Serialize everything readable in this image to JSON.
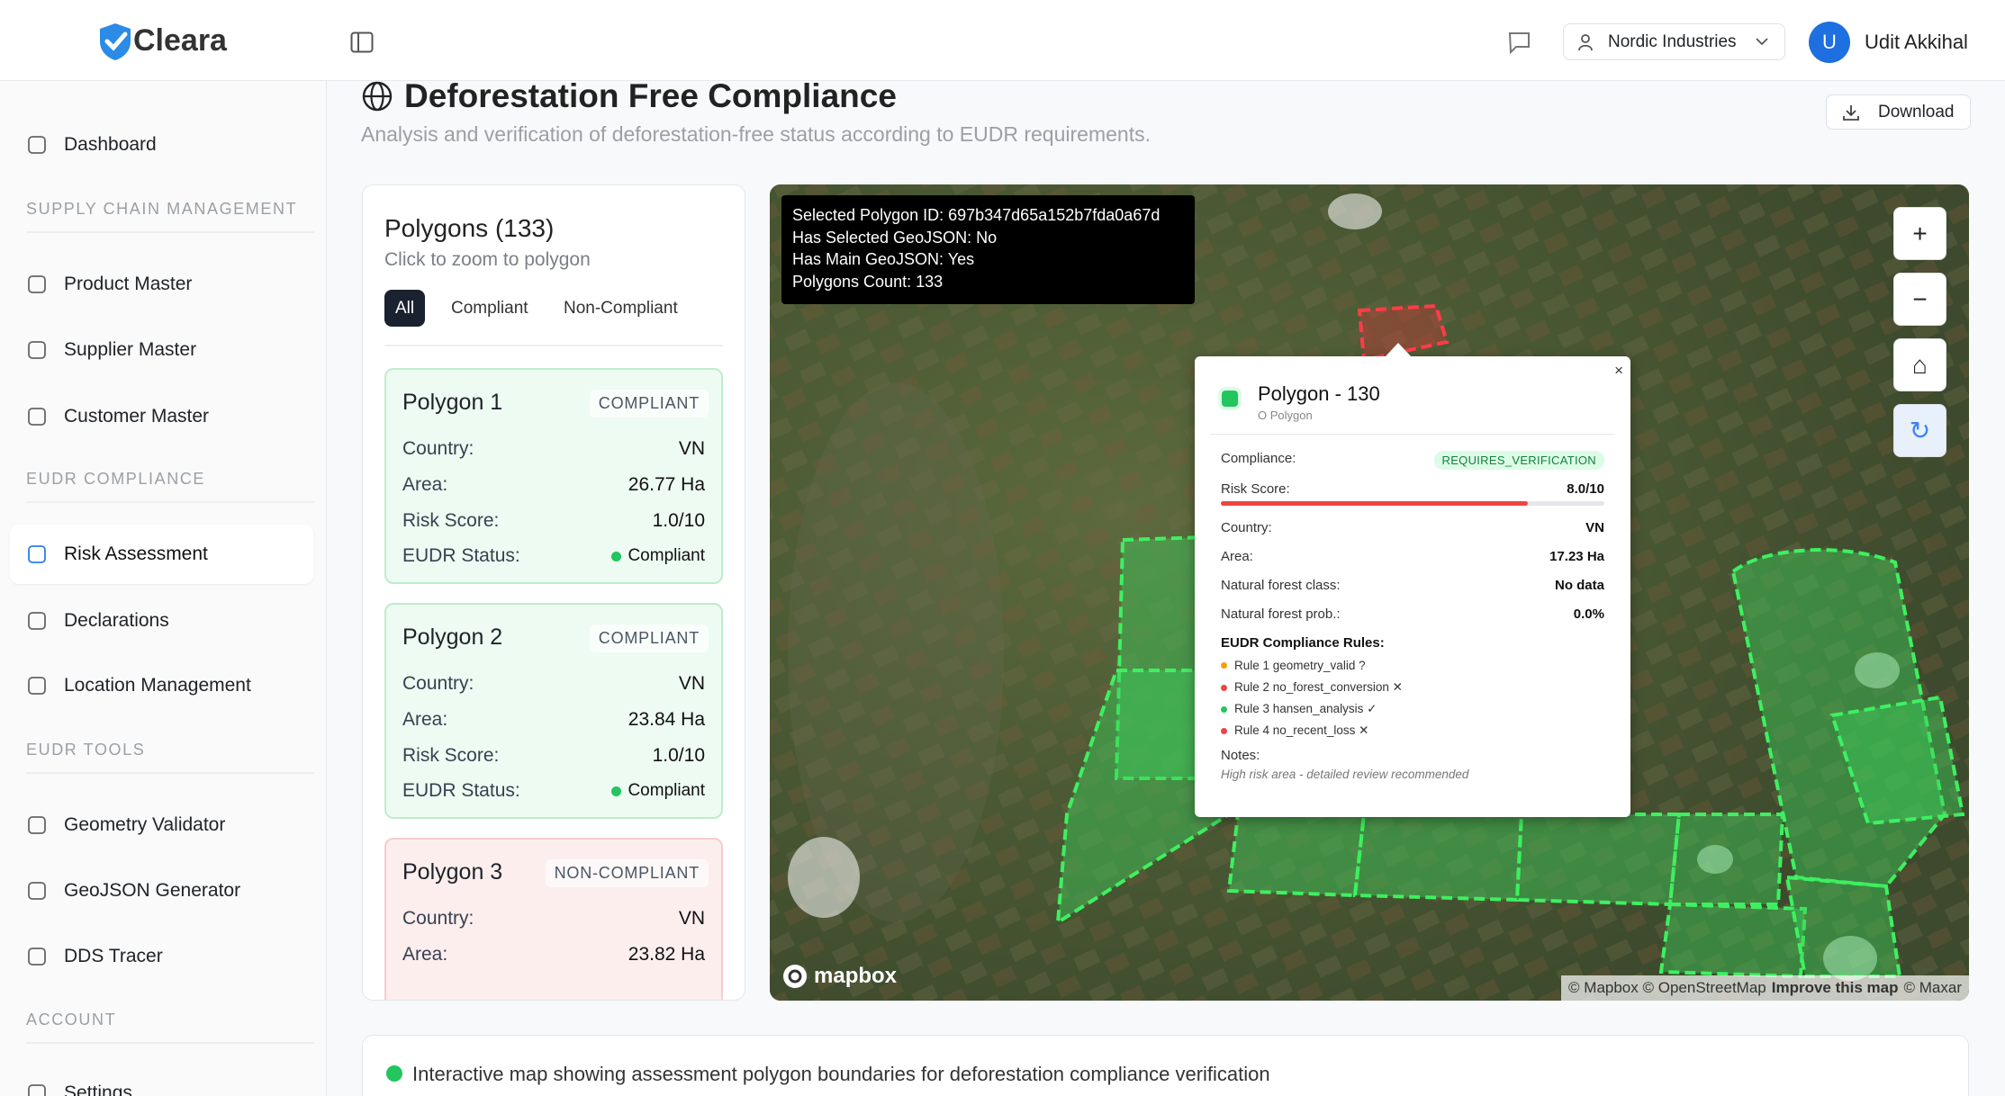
{
  "header": {
    "brand": "Cleara",
    "organization": "Nordic Industries",
    "avatar_initial": "U",
    "user_name": "Udit Akkihal"
  },
  "sidebar": {
    "items": [
      {
        "label": "Dashboard",
        "kind": "item"
      },
      {
        "label": "SUPPLY CHAIN MANAGEMENT",
        "kind": "section"
      },
      {
        "label": "Product Master",
        "kind": "item"
      },
      {
        "label": "Supplier Master",
        "kind": "item"
      },
      {
        "label": "Customer Master",
        "kind": "item"
      },
      {
        "label": "EUDR COMPLIANCE",
        "kind": "section"
      },
      {
        "label": "Risk Assessment",
        "kind": "item",
        "active": true
      },
      {
        "label": "Declarations",
        "kind": "item"
      },
      {
        "label": "Location Management",
        "kind": "item"
      },
      {
        "label": "EUDR TOOLS",
        "kind": "section"
      },
      {
        "label": "Geometry Validator",
        "kind": "item"
      },
      {
        "label": "GeoJSON Generator",
        "kind": "item"
      },
      {
        "label": "DDS Tracer",
        "kind": "item"
      },
      {
        "label": "ACCOUNT",
        "kind": "section"
      },
      {
        "label": "Settings",
        "kind": "item"
      }
    ]
  },
  "page": {
    "title": "Deforestation Free Compliance",
    "subtitle": "Analysis and verification of deforestation-free status according to EUDR requirements.",
    "download": "Download"
  },
  "polygons_panel": {
    "title": "Polygons (133)",
    "hint": "Click to zoom to polygon",
    "tabs": [
      "All",
      "Compliant",
      "Non-Compliant"
    ],
    "cards": [
      {
        "name": "Polygon 1",
        "status": "COMPLIANT",
        "background": "#edfbf2",
        "border": "#bfeccd",
        "rows": [
          [
            "Country:",
            "VN"
          ],
          [
            "Area:",
            "26.77 Ha"
          ],
          [
            "Risk Score:",
            "1.0/10"
          ],
          [
            "EUDR Status:",
            "Compliant"
          ]
        ]
      },
      {
        "name": "Polygon 2",
        "status": "COMPLIANT",
        "background": "#edfbf2",
        "border": "#bfeccd",
        "rows": [
          [
            "Country:",
            "VN"
          ],
          [
            "Area:",
            "23.84 Ha"
          ],
          [
            "Risk Score:",
            "1.0/10"
          ],
          [
            "EUDR Status:",
            "Compliant"
          ]
        ]
      },
      {
        "name": "Polygon 3",
        "status": "NON-COMPLIANT",
        "background": "#fdeeee",
        "border": "#f6cccc",
        "rows": [
          [
            "Country:",
            "VN"
          ],
          [
            "Area:",
            "23.82 Ha"
          ]
        ]
      }
    ]
  },
  "map": {
    "debug": [
      "Selected Polygon ID: 697b347d65a152b7fda0a67d",
      "Has Selected GeoJSON: No",
      "Has Main GeoJSON: Yes",
      "Polygons Count: 133"
    ],
    "logo": "mapbox",
    "attribution": [
      "© Mapbox © OpenStreetMap",
      "Improve this map",
      "© Maxar"
    ],
    "controls": [
      "+",
      "−",
      "⌂",
      "↻"
    ],
    "popup": {
      "title": "Polygon - 130",
      "subtitle": "O Polygon",
      "compliance_label": "Compliance:",
      "compliance": "REQUIRES_VERIFICATION",
      "risk_label": "Risk Score:",
      "risk": {
        "value": 8.0,
        "max": 10,
        "label": "8.0/10"
      },
      "rows": [
        [
          "Country:",
          "VN"
        ],
        [
          "Area:",
          "17.23 Ha"
        ],
        [
          "Natural forest class:",
          "No data"
        ],
        [
          "Natural forest prob.:",
          "0.0%"
        ]
      ],
      "rules_title": "EUDR Compliance Rules:",
      "rules": [
        {
          "text": "Rule 1 geometry_valid ?",
          "color": "#f59e0b"
        },
        {
          "text": "Rule 2 no_forest_conversion ✕",
          "color": "#ef4444"
        },
        {
          "text": "Rule 3 hansen_analysis ✓",
          "color": "#22c55e"
        },
        {
          "text": "Rule 4 no_recent_loss ✕",
          "color": "#ef4444"
        }
      ],
      "notes_title": "Notes:",
      "notes": "High risk area - detailed review recommended"
    }
  },
  "footer_info": "Interactive map showing assessment polygon boundaries for deforestation compliance verification"
}
